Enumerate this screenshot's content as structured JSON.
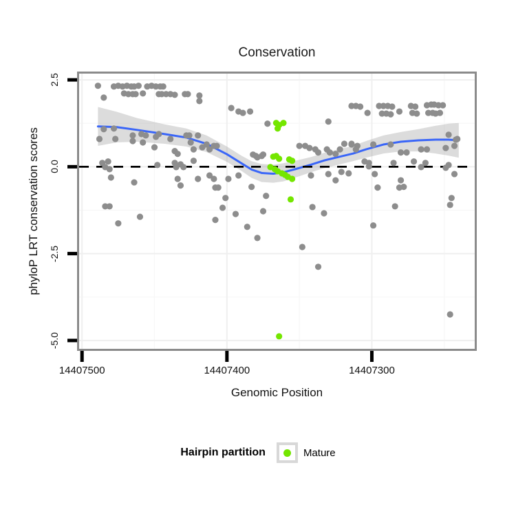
{
  "title": "Conservation",
  "chart_data": {
    "type": "scatter",
    "title": "Conservation",
    "xlabel": "Genomic Position",
    "ylabel": "phyloP LRT conservation scores",
    "x_axis_reversed": true,
    "x_domain": [
      14407502,
      14407229
    ],
    "y_domain": [
      -5.24,
      2.68
    ],
    "x_ticks": [
      {
        "value": 14407500,
        "label": "14407500"
      },
      {
        "value": 14407400,
        "label": "14407400"
      },
      {
        "value": 14407300,
        "label": "14407300"
      }
    ],
    "y_ticks": [
      {
        "value": 2.5,
        "label": "2.5"
      },
      {
        "value": 0.0,
        "label": "0.0"
      },
      {
        "value": -2.5,
        "label": "-2.5"
      },
      {
        "value": -5.0,
        "label": "-5.0"
      }
    ],
    "x_minor": [
      14407450,
      14407350,
      14407250
    ],
    "y_minor": [
      1.25,
      -1.25,
      -3.75
    ],
    "zero_line": {
      "y": 0,
      "style": "dashed",
      "color": "#000000"
    },
    "grid": {
      "major_color": "#efefef",
      "minor_color": "#f7f7f7",
      "background": "#ffffff"
    },
    "panel_border_color": "#8b8b8b",
    "point_colors": {
      "unpartitioned": "#8d8d8d",
      "mature": "#74E600"
    },
    "series": [
      {
        "name": "unpartitioned",
        "in_legend": false,
        "color": "#8d8d8d",
        "points": [
          [
            14407489,
            2.33
          ],
          [
            14407485,
            1.99
          ],
          [
            14407478,
            2.31
          ],
          [
            14407475,
            2.33
          ],
          [
            14407472,
            2.31
          ],
          [
            14407469,
            2.33
          ],
          [
            14407466,
            2.31
          ],
          [
            14407464,
            2.31
          ],
          [
            14407461,
            2.33
          ],
          [
            14407455,
            2.31
          ],
          [
            14407452,
            2.33
          ],
          [
            14407449,
            2.31
          ],
          [
            14407446,
            2.31
          ],
          [
            14407444,
            2.31
          ],
          [
            14407471,
            2.11
          ],
          [
            14407468,
            2.09
          ],
          [
            14407465,
            2.09
          ],
          [
            14407463,
            2.09
          ],
          [
            14407458,
            2.11
          ],
          [
            14407447,
            2.09
          ],
          [
            14407445,
            2.09
          ],
          [
            14407442,
            2.09
          ],
          [
            14407439,
            2.09
          ],
          [
            14407436,
            2.07
          ],
          [
            14407429,
            2.09
          ],
          [
            14407427,
            2.09
          ],
          [
            14407419,
            2.05
          ],
          [
            14407419,
            1.89
          ],
          [
            14407397,
            1.69
          ],
          [
            14407392,
            1.59
          ],
          [
            14407389,
            1.55
          ],
          [
            14407384,
            1.59
          ],
          [
            14407372,
            1.24
          ],
          [
            14407330,
            1.3
          ],
          [
            14407488,
            0.8
          ],
          [
            14407485,
            1.08
          ],
          [
            14407478,
            1.1
          ],
          [
            14407477,
            0.8
          ],
          [
            14407465,
            0.9
          ],
          [
            14407465,
            0.74
          ],
          [
            14407459,
            0.94
          ],
          [
            14407458,
            0.7
          ],
          [
            14407456,
            0.9
          ],
          [
            14407450,
            0.56
          ],
          [
            14407449,
            0.86
          ],
          [
            14407447,
            0.94
          ],
          [
            14407439,
            0.8
          ],
          [
            14407436,
            0.45
          ],
          [
            14407434,
            0.37
          ],
          [
            14407428,
            0.9
          ],
          [
            14407426,
            0.9
          ],
          [
            14407425,
            0.7
          ],
          [
            14407423,
            0.5
          ],
          [
            14407420,
            0.9
          ],
          [
            14407417,
            0.56
          ],
          [
            14407414,
            0.64
          ],
          [
            14407412,
            0.5
          ],
          [
            14407409,
            0.6
          ],
          [
            14407407,
            0.6
          ],
          [
            14407486,
            0.11
          ],
          [
            14407482,
            0.15
          ],
          [
            14407484,
            -0.01
          ],
          [
            14407481,
            -0.07
          ],
          [
            14407480,
            -0.31
          ],
          [
            14407464,
            -0.45
          ],
          [
            14407484,
            -1.14
          ],
          [
            14407481,
            -1.14
          ],
          [
            14407460,
            -1.44
          ],
          [
            14407475,
            -1.63
          ],
          [
            14407448,
            0.05
          ],
          [
            14407436,
            0.11
          ],
          [
            14407432,
            0.07
          ],
          [
            14407435,
            -0.01
          ],
          [
            14407434,
            -0.35
          ],
          [
            14407432,
            -0.54
          ],
          [
            14407430,
            -0.01
          ],
          [
            14407423,
            0.17
          ],
          [
            14407420,
            -0.35
          ],
          [
            14407412,
            -0.25
          ],
          [
            14407409,
            -0.35
          ],
          [
            14407408,
            -0.6
          ],
          [
            14407408,
            -1.53
          ],
          [
            14407394,
            -1.36
          ],
          [
            14407386,
            -1.73
          ],
          [
            14407379,
            -2.05
          ],
          [
            14407406,
            -0.6
          ],
          [
            14407403,
            -1.18
          ],
          [
            14407401,
            -0.9
          ],
          [
            14407399,
            -0.35
          ],
          [
            14407392,
            -0.25
          ],
          [
            14407383,
            -0.58
          ],
          [
            14407375,
            -1.28
          ],
          [
            14407373,
            -0.84
          ],
          [
            14407348,
            -2.31
          ],
          [
            14407342,
            -0.25
          ],
          [
            14407341,
            -1.16
          ],
          [
            14407337,
            -2.88
          ],
          [
            14407333,
            -1.34
          ],
          [
            14407330,
            -0.21
          ],
          [
            14407325,
            -0.39
          ],
          [
            14407321,
            -0.15
          ],
          [
            14407382,
            0.35
          ],
          [
            14407380,
            0.31
          ],
          [
            14407379,
            0.27
          ],
          [
            14407376,
            0.31
          ],
          [
            14407375,
            0.35
          ],
          [
            14407350,
            0.6
          ],
          [
            14407346,
            0.6
          ],
          [
            14407343,
            0.54
          ],
          [
            14407339,
            0.5
          ],
          [
            14407337,
            0.41
          ],
          [
            14407331,
            0.5
          ],
          [
            14407329,
            0.41
          ],
          [
            14407325,
            0.37
          ],
          [
            14407322,
            0.5
          ],
          [
            14407319,
            0.66
          ],
          [
            14407314,
            0.66
          ],
          [
            14407314,
            1.75
          ],
          [
            14407311,
            1.75
          ],
          [
            14407308,
            1.73
          ],
          [
            14407303,
            1.55
          ],
          [
            14407295,
            1.75
          ],
          [
            14407292,
            1.75
          ],
          [
            14407289,
            1.75
          ],
          [
            14407286,
            1.73
          ],
          [
            14407293,
            1.53
          ],
          [
            14407290,
            1.53
          ],
          [
            14407287,
            1.51
          ],
          [
            14407281,
            1.59
          ],
          [
            14407273,
            1.75
          ],
          [
            14407270,
            1.73
          ],
          [
            14407272,
            1.55
          ],
          [
            14407269,
            1.53
          ],
          [
            14407262,
            1.77
          ],
          [
            14407259,
            1.79
          ],
          [
            14407257,
            1.79
          ],
          [
            14407254,
            1.77
          ],
          [
            14407251,
            1.77
          ],
          [
            14407261,
            1.55
          ],
          [
            14407258,
            1.55
          ],
          [
            14407256,
            1.53
          ],
          [
            14407253,
            1.55
          ],
          [
            14407314,
            0.64
          ],
          [
            14407310,
            0.6
          ],
          [
            14407311,
            0.5
          ],
          [
            14407299,
            0.64
          ],
          [
            14407287,
            0.64
          ],
          [
            14407280,
            0.41
          ],
          [
            14407276,
            0.41
          ],
          [
            14407266,
            0.5
          ],
          [
            14407262,
            0.5
          ],
          [
            14407249,
            0.54
          ],
          [
            14407243,
            0.6
          ],
          [
            14407247,
            0.92
          ],
          [
            14407242,
            0.78
          ],
          [
            14407241,
            0.8
          ],
          [
            14407305,
            0.15
          ],
          [
            14407302,
            0.11
          ],
          [
            14407285,
            0.11
          ],
          [
            14407271,
            0.15
          ],
          [
            14407263,
            0.11
          ],
          [
            14407247,
            0.05
          ],
          [
            14407316,
            -0.19
          ],
          [
            14407302,
            0.01
          ],
          [
            14407298,
            -0.21
          ],
          [
            14407296,
            -0.6
          ],
          [
            14407284,
            -1.14
          ],
          [
            14407281,
            -0.6
          ],
          [
            14407280,
            -0.39
          ],
          [
            14407278,
            -0.58
          ],
          [
            14407266,
            -0.01
          ],
          [
            14407249,
            -0.03
          ],
          [
            14407299,
            -1.69
          ],
          [
            14407246,
            -1.1
          ],
          [
            14407245,
            -0.9
          ],
          [
            14407243,
            -0.21
          ],
          [
            14407246,
            -4.25
          ]
        ]
      },
      {
        "name": "Mature",
        "in_legend": true,
        "color": "#74E600",
        "points": [
          [
            14407366,
            1.26
          ],
          [
            14407361,
            1.26
          ],
          [
            14407364,
            1.2
          ],
          [
            14407365,
            1.1
          ],
          [
            14407368,
            0.29
          ],
          [
            14407366,
            0.31
          ],
          [
            14407364,
            0.23
          ],
          [
            14407357,
            0.21
          ],
          [
            14407355,
            0.17
          ],
          [
            14407370,
            -0.01
          ],
          [
            14407367,
            -0.07
          ],
          [
            14407365,
            -0.13
          ],
          [
            14407362,
            -0.19
          ],
          [
            14407360,
            -0.23
          ],
          [
            14407358,
            -0.29
          ],
          [
            14407355,
            -0.35
          ],
          [
            14407356,
            -0.94
          ],
          [
            14407364,
            -4.88
          ]
        ]
      }
    ],
    "smooth": {
      "color": "#3A66F8",
      "band_color": "#9a9a9a",
      "band_opacity": 0.35,
      "x": [
        14407489,
        14407476,
        14407462,
        14407443,
        14407428,
        14407414,
        14407400,
        14407390,
        14407383,
        14407376,
        14407368,
        14407361,
        14407352,
        14407342,
        14407333,
        14407323,
        14407313,
        14407304,
        14407292,
        14407280,
        14407268,
        14407256,
        14407247,
        14407240
      ],
      "y": [
        1.16,
        1.14,
        1.06,
        0.94,
        0.84,
        0.66,
        0.36,
        0.1,
        -0.08,
        -0.18,
        -0.2,
        -0.16,
        -0.06,
        0.06,
        0.18,
        0.28,
        0.38,
        0.5,
        0.64,
        0.72,
        0.76,
        0.78,
        0.78,
        0.76
      ],
      "ci": [
        0.56,
        0.44,
        0.34,
        0.28,
        0.26,
        0.24,
        0.22,
        0.22,
        0.24,
        0.26,
        0.26,
        0.26,
        0.24,
        0.22,
        0.22,
        0.22,
        0.22,
        0.24,
        0.26,
        0.28,
        0.32,
        0.4,
        0.46,
        0.5
      ]
    },
    "legend": {
      "title": "Hairpin partition",
      "position": "bottom",
      "entries": [
        {
          "label": "Mature",
          "color": "#74E600"
        }
      ]
    }
  }
}
